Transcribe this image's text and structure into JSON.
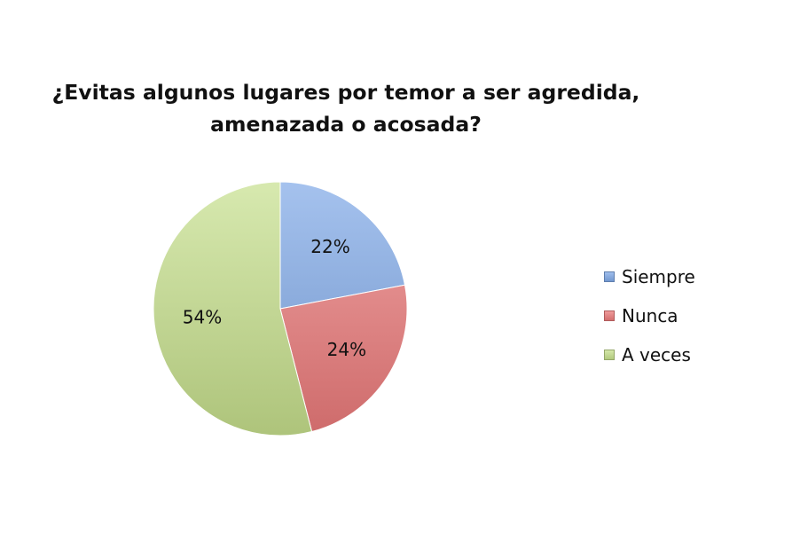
{
  "chart_data": {
    "type": "pie",
    "title_lines": [
      "¿Evitas algunos lugares por temor a ser agredida,",
      "amenazada o acosada?"
    ],
    "legend_position": "right",
    "slices": [
      {
        "name": "Siempre",
        "value": 22,
        "label": "22%",
        "color": "#7fa8e6"
      },
      {
        "name": "Nunca",
        "value": 24,
        "label": "24%",
        "color": "#ea7a7a"
      },
      {
        "name": "A veces",
        "value": 54,
        "label": "54%",
        "color": "#c6df8c"
      }
    ]
  }
}
